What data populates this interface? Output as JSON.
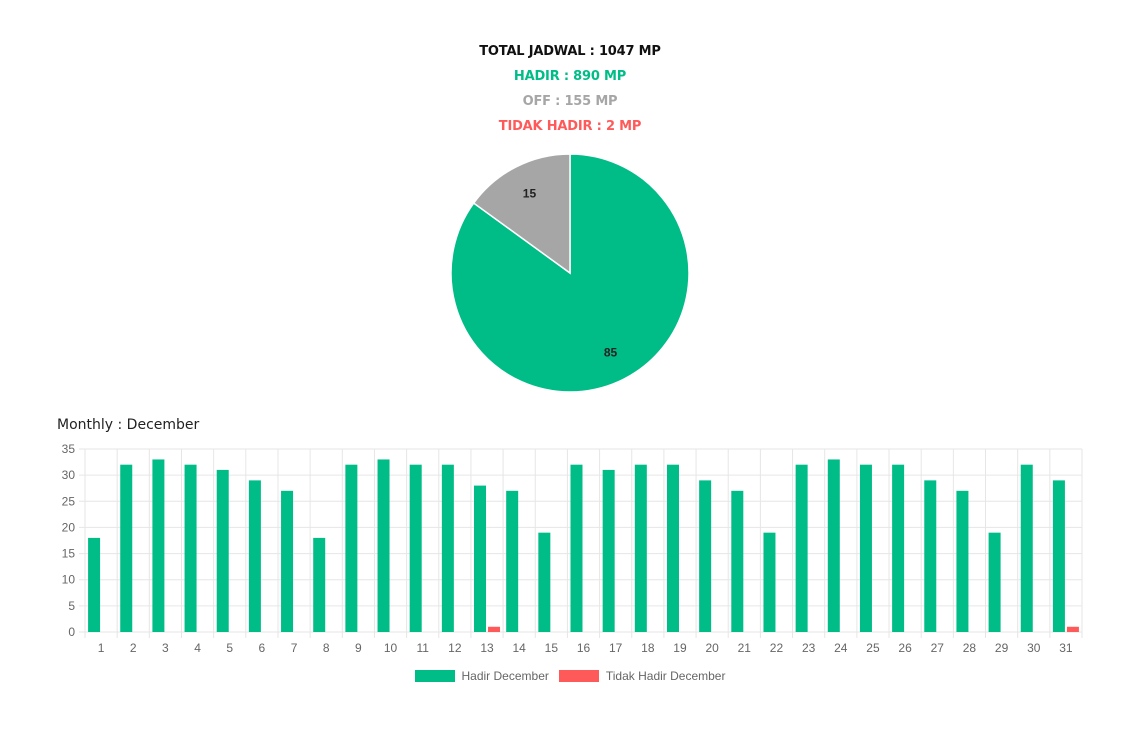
{
  "summary": {
    "total": "TOTAL JADWAL : 1047 MP",
    "hadir": "HADIR : 890 MP",
    "off": "OFF : 155 MP",
    "tidak_hadir": "TIDAK HADIR : 2 MP"
  },
  "colors": {
    "hadir": "#00bc87",
    "off": "#a6a6a6",
    "tidak_hadir": "#ff5a5a",
    "grid": "#e6e6e6",
    "tick": "#666666"
  },
  "monthly_title": "Monthly : December",
  "chart_data": [
    {
      "type": "pie",
      "slices": [
        {
          "label": "Hadir",
          "value": 85,
          "color": "#00bc87",
          "data_label": "85"
        },
        {
          "label": "Off",
          "value": 15,
          "color": "#a6a6a6",
          "data_label": "15"
        }
      ],
      "start": "top",
      "direction": "clockwise"
    },
    {
      "type": "bar",
      "title": "Monthly : December",
      "categories": [
        "1",
        "2",
        "3",
        "4",
        "5",
        "6",
        "7",
        "8",
        "9",
        "10",
        "11",
        "12",
        "13",
        "14",
        "15",
        "16",
        "17",
        "18",
        "19",
        "20",
        "21",
        "22",
        "23",
        "24",
        "25",
        "26",
        "27",
        "28",
        "29",
        "30",
        "31"
      ],
      "series": [
        {
          "name": "Hadir December",
          "color": "#00bc87",
          "values": [
            18,
            32,
            33,
            32,
            31,
            29,
            27,
            18,
            32,
            33,
            32,
            32,
            28,
            27,
            19,
            32,
            31,
            32,
            32,
            29,
            27,
            19,
            32,
            33,
            32,
            32,
            29,
            27,
            19,
            32,
            29
          ]
        },
        {
          "name": "Tidak Hadir December",
          "color": "#ff5a5a",
          "values": [
            0,
            0,
            0,
            0,
            0,
            0,
            0,
            0,
            0,
            0,
            0,
            0,
            1,
            0,
            0,
            0,
            0,
            0,
            0,
            0,
            0,
            0,
            0,
            0,
            0,
            0,
            0,
            0,
            0,
            0,
            1
          ]
        }
      ],
      "ylim": [
        0,
        35
      ],
      "yticks": [
        0,
        5,
        10,
        15,
        20,
        25,
        30,
        35
      ],
      "grid": true,
      "legend": "bottom"
    }
  ]
}
